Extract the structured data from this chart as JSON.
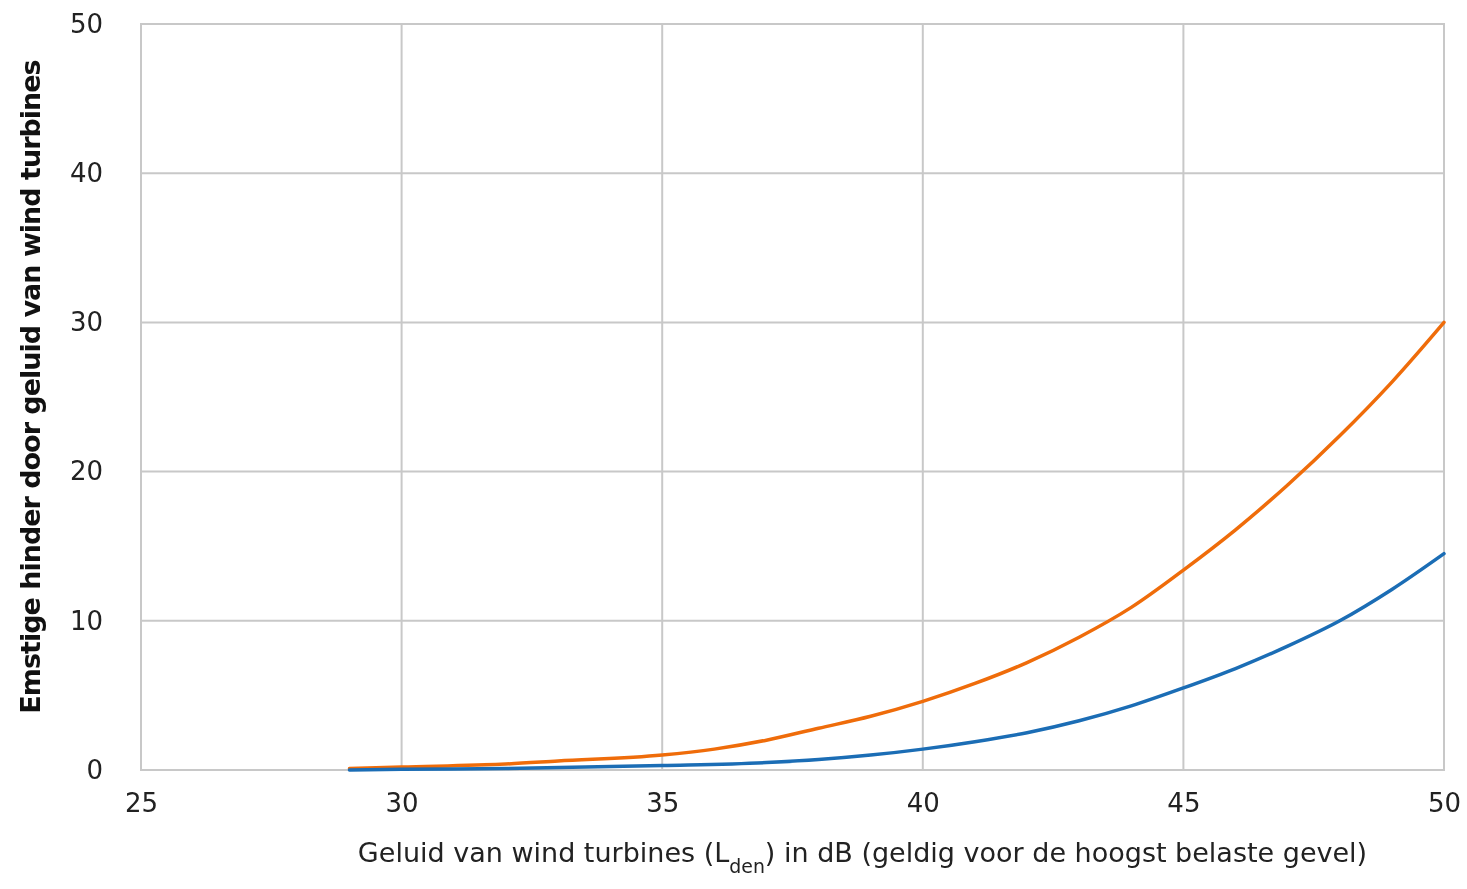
{
  "chart_data": {
    "type": "line",
    "xlabel": "Geluid van wind turbines (L$_{den}$) in dB (geldig voor de hoogst belaste gevel)",
    "ylabel": "Emstige hinder door geluid van wind turbines",
    "xlim": [
      25,
      50
    ],
    "ylim": [
      0,
      50
    ],
    "xticks": [
      25,
      30,
      35,
      40,
      45,
      50
    ],
    "yticks": [
      0,
      10,
      20,
      30,
      40,
      50
    ],
    "grid": true,
    "marker": "none",
    "line_style": "solid",
    "series": [
      {
        "color": "#ef6c0a",
        "x": [
          29,
          30,
          32,
          33,
          35,
          36,
          37,
          38,
          39,
          40,
          41,
          42,
          43,
          44,
          45,
          46,
          47,
          48,
          49,
          50
        ],
        "values": [
          0.1,
          0.2,
          0.4,
          0.6,
          1.0,
          1.4,
          2.0,
          2.8,
          3.6,
          4.6,
          5.8,
          7.2,
          8.9,
          10.9,
          13.4,
          16.1,
          19.1,
          22.4,
          26.0,
          30
        ]
      },
      {
        "color": "#1b6db5",
        "x": [
          29,
          30,
          32,
          35,
          37,
          38,
          39,
          40,
          41,
          42,
          43,
          44,
          45,
          46,
          47,
          48,
          49,
          50
        ],
        "values": [
          0,
          0.05,
          0.1,
          0.3,
          0.5,
          0.7,
          1.0,
          1.4,
          1.9,
          2.5,
          3.3,
          4.3,
          5.5,
          6.8,
          8.3,
          10,
          12.1,
          14.5
        ]
      }
    ]
  }
}
